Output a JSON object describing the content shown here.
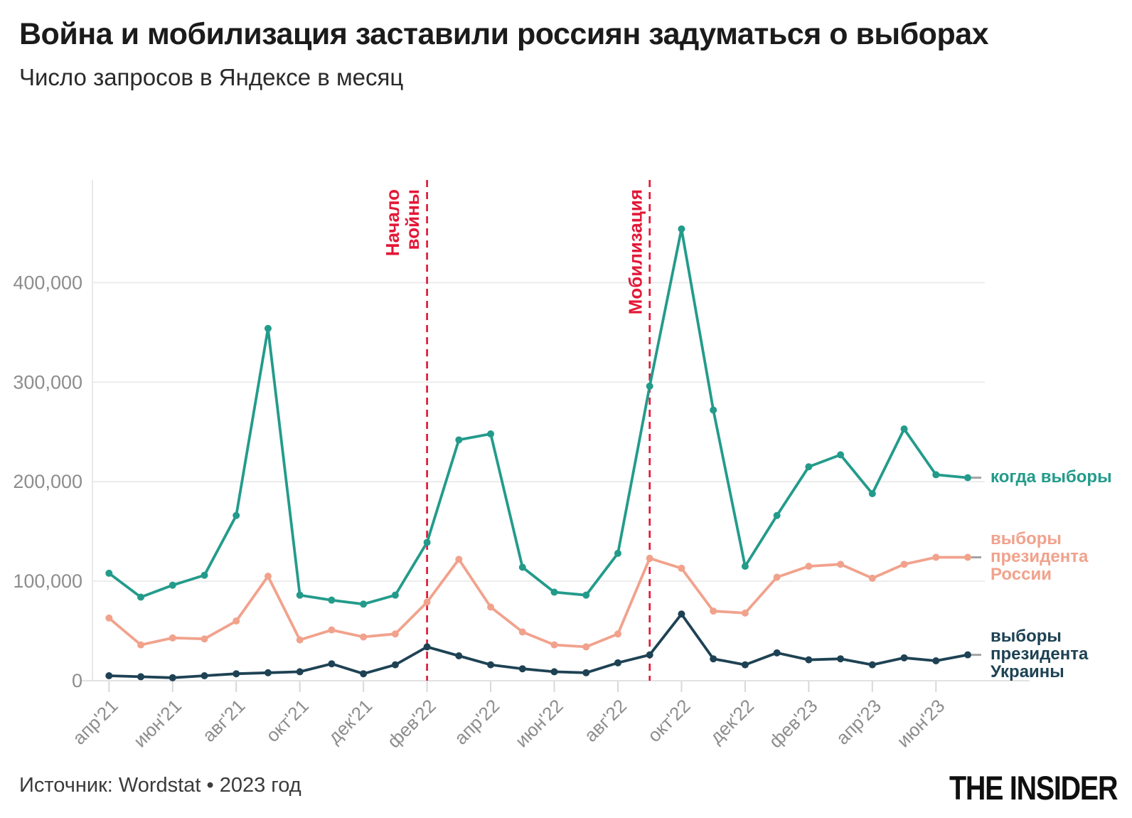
{
  "header": {
    "title": "Война и мобилизация заставили россиян задуматься о выборах",
    "subtitle": "Число запросов в Яндексе в месяц"
  },
  "footer": {
    "source": "Источник: Wordstat • 2023 год",
    "logo": "THE INSIDER"
  },
  "colors": {
    "teal": "#239b8b",
    "salmon": "#f1a28c",
    "navy": "#1e4254",
    "red": "#e31837",
    "axis_text": "#8d8d8d",
    "grid": "#ececec",
    "zero_line": "#e2e2e2",
    "axis_line": "#e8e8e8",
    "tick": "#d8d8d8",
    "legend_dash": "#a3a3a3"
  },
  "chart_data": {
    "type": "line",
    "title": "Война и мобилизация заставили россиян задуматься о выборах",
    "subtitle": "Число запросов в Яндексе в месяц",
    "x": [
      "апр'21",
      "май'21",
      "июн'21",
      "июл'21",
      "авг'21",
      "сен'21",
      "окт'21",
      "ноя'21",
      "дек'21",
      "янв'22",
      "фев'22",
      "мар'22",
      "апр'22",
      "май'22",
      "июн'22",
      "июл'22",
      "авг'22",
      "сен'22",
      "окт'22",
      "ноя'22",
      "дек'22",
      "янв'23",
      "фев'23",
      "мар'23",
      "апр'23",
      "май'23",
      "июн'23",
      "июл'23"
    ],
    "x_ticks_shown": [
      "апр'21",
      "июн'21",
      "авг'21",
      "окт'21",
      "дек'21",
      "фев'22",
      "апр'22",
      "июн'22",
      "авг'22",
      "окт'22",
      "дек'22",
      "фев'23",
      "апр'23",
      "июн'23"
    ],
    "y_ticks": [
      0,
      100000,
      200000,
      300000,
      400000
    ],
    "ylim": [
      0,
      460000
    ],
    "grid": true,
    "legend_position": "right-of-line-ends",
    "series": [
      {
        "key": "kogda-vybory",
        "label": "когда выборы",
        "legend": "когда выборы",
        "color": "#239b8b",
        "values": [
          108000,
          84000,
          96000,
          106000,
          166000,
          354000,
          86000,
          81000,
          77000,
          86000,
          139000,
          242000,
          248000,
          114000,
          89000,
          86000,
          128000,
          296000,
          454000,
          272000,
          115000,
          166000,
          215000,
          227000,
          188000,
          253000,
          207000,
          204000
        ]
      },
      {
        "key": "vybory-prezidenta-rossii",
        "label": "выборы президента России",
        "legend": "выборы\nпрезидента\nРоссии",
        "color": "#f1a28c",
        "values": [
          63000,
          36000,
          43000,
          42000,
          60000,
          105000,
          41000,
          51000,
          44000,
          47000,
          79000,
          122000,
          74000,
          49000,
          36000,
          34000,
          47000,
          123000,
          113000,
          70000,
          68000,
          104000,
          115000,
          117000,
          103000,
          117000,
          124000,
          124000
        ]
      },
      {
        "key": "vybory-prezidenta-ukrainy",
        "label": "выборы президента Украины",
        "legend": "выборы\nпрезидента\nУкраины",
        "color": "#1e4254",
        "values": [
          5000,
          4000,
          3000,
          5000,
          7000,
          8000,
          9000,
          17000,
          7000,
          16000,
          34000,
          25000,
          16000,
          12000,
          9000,
          8000,
          18000,
          26000,
          67000,
          22000,
          16000,
          28000,
          21000,
          22000,
          16000,
          23000,
          20000,
          26000
        ]
      }
    ],
    "annotations": [
      {
        "label": "Начало\nвойны",
        "x": "фев'22",
        "month_index": 10,
        "color": "#e31837"
      },
      {
        "label": "Мобилизация",
        "x": "сен'22",
        "month_index": 17,
        "color": "#e31837"
      }
    ]
  }
}
